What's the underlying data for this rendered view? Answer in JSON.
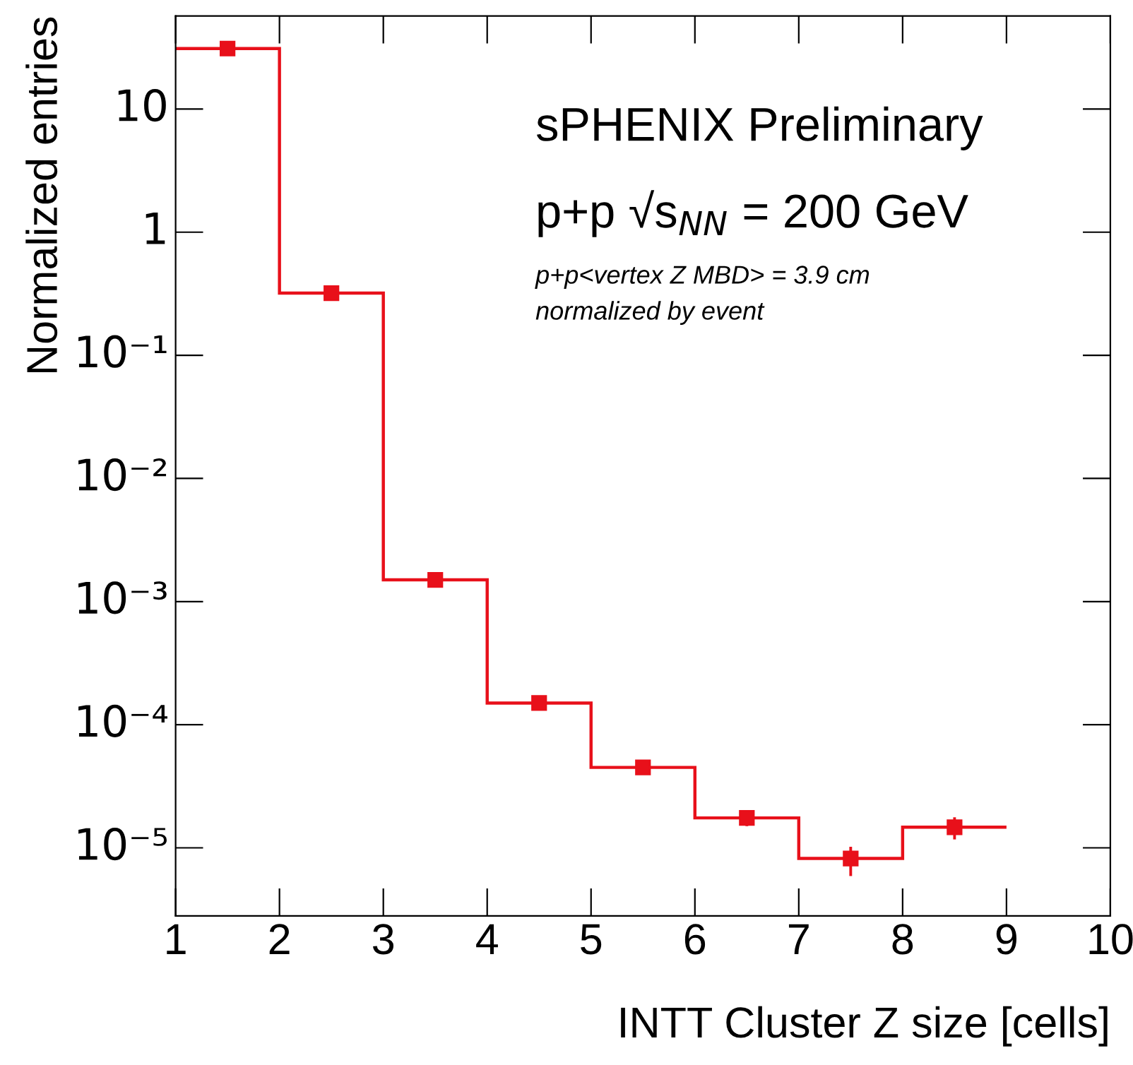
{
  "chart_data": {
    "type": "histogram",
    "xlabel": "INTT Cluster Z size [cells]",
    "ylabel": "Normalized entries",
    "bins": [
      1,
      2,
      3,
      4,
      5,
      6,
      7,
      8,
      9
    ],
    "series": [
      {
        "color": "#e8101a",
        "values": [
          31,
          0.32,
          0.0015,
          0.00015,
          4.5e-05,
          1.75e-05,
          8.2e-06,
          1.47e-05
        ]
      },
      {
        "type": "scatter",
        "color": "#e8101a",
        "marker": "square",
        "x": [
          1.5,
          2.5,
          3.5,
          4.5,
          5.5,
          6.5,
          7.5,
          8.5
        ],
        "values": [
          31,
          0.32,
          0.0015,
          0.00015,
          4.5e-05,
          1.75e-05,
          8.2e-06,
          1.47e-05
        ],
        "errors": [
          null,
          null,
          null,
          null,
          null,
          2.5e-06,
          [
            5.9e-06,
            1.02e-05
          ],
          3e-06
        ]
      }
    ],
    "log": "y",
    "grid": false,
    "legend": false,
    "xlim": [
      1,
      10
    ],
    "xticks": [
      1,
      2,
      3,
      4,
      5,
      6,
      7,
      8,
      9,
      10
    ],
    "ylim": [
      2.8e-06,
      57
    ],
    "yticks": [
      {
        "value": 10,
        "label": "10"
      },
      {
        "value": 1,
        "label": "1"
      },
      {
        "value": 0.1,
        "label": "10⁻¹"
      },
      {
        "value": 0.01,
        "label": "10⁻²"
      },
      {
        "value": 0.001,
        "label": "10⁻³"
      },
      {
        "value": 0.0001,
        "label": "10⁻⁴"
      },
      {
        "value": 1e-05,
        "label": "10⁻⁵"
      }
    ],
    "annotations": [
      "sPHENIX Preliminary",
      "p+p √s$_{NN}$ = 200 GeV",
      "p+p<vertex Z MBD> = 3.9 cm",
      "normalized by event"
    ]
  }
}
